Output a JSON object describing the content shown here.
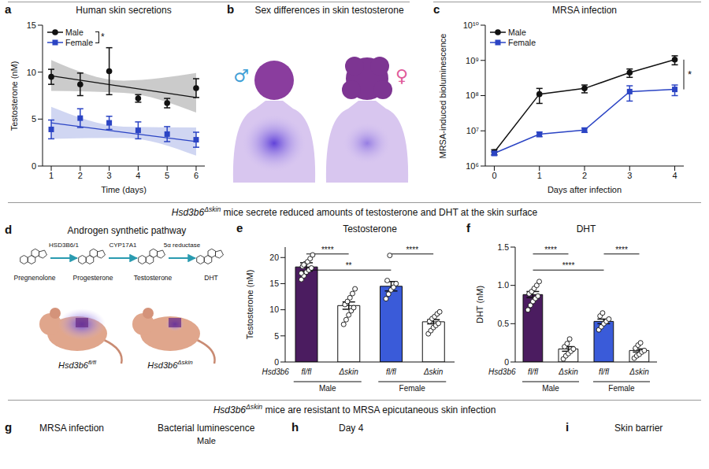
{
  "chart_data": [
    {
      "panel": "a",
      "type": "scatter",
      "title": "Human skin secretions",
      "x_label": "Time (days)",
      "y_label": "Testosterone (nM)",
      "xlim": [
        0.7,
        6.3
      ],
      "xticks": [
        1,
        2,
        3,
        4,
        5,
        6
      ],
      "ylim": [
        0,
        15
      ],
      "yticks": [
        0,
        5,
        10,
        15
      ],
      "legend": "upper left",
      "annotations": [
        "*"
      ],
      "series": [
        {
          "name": "Male",
          "color": "#111111",
          "marker": "circle",
          "x": [
            1,
            2,
            3,
            4,
            5,
            6
          ],
          "values": [
            9.5,
            8.7,
            10.1,
            7.2,
            6.7,
            8.3
          ],
          "errors": [
            0.8,
            1.2,
            2.5,
            0.4,
            0.5,
            1.0
          ],
          "fit_x": [
            1,
            3.5,
            6
          ],
          "fit": [
            9.6,
            8.45,
            7.3
          ],
          "fit_low": [
            8.0,
            7.8,
            5.7
          ],
          "fit_high": [
            11.3,
            9.1,
            9.9
          ]
        },
        {
          "name": "Female",
          "color": "#2b44c4",
          "marker": "square",
          "x": [
            1,
            2,
            3,
            4,
            5,
            6
          ],
          "values": [
            3.9,
            5.1,
            4.6,
            3.8,
            3.4,
            2.8
          ],
          "errors": [
            1.0,
            1.0,
            0.7,
            0.9,
            0.8,
            0.8
          ],
          "fit_x": [
            1,
            3.5,
            6
          ],
          "fit": [
            4.6,
            3.6,
            2.6
          ],
          "fit_low": [
            2.9,
            3.0,
            1.1
          ],
          "fit_high": [
            6.3,
            4.2,
            4.1
          ]
        }
      ]
    },
    {
      "panel": "c",
      "type": "line",
      "title": "MRSA infection",
      "x_label": "Days after infection",
      "y_label": "MRSA-induced bioluminescence",
      "log": "y",
      "xlim": [
        -0.2,
        4.2
      ],
      "xticks": [
        0,
        1,
        2,
        3,
        4
      ],
      "ylim": [
        1000000,
        10000000000
      ],
      "yticks": [
        {
          "value": 1000000,
          "label": "10⁶"
        },
        {
          "value": 10000000,
          "label": "10⁷"
        },
        {
          "value": 100000000,
          "label": "10⁸"
        },
        {
          "value": 1000000000,
          "label": "10⁹"
        },
        {
          "value": 10000000000,
          "label": "10¹⁰"
        }
      ],
      "legend": "upper left",
      "annotations": [
        "*"
      ],
      "series": [
        {
          "name": "Male",
          "color": "#111111",
          "marker": "circle",
          "x": [
            0,
            1,
            2,
            3,
            4
          ],
          "values": [
            2500000,
            110000000,
            160000000,
            450000000,
            1050000000
          ],
          "errors": [
            400000,
            50000000,
            40000000,
            120000000,
            300000000
          ]
        },
        {
          "name": "Female",
          "color": "#2b44c4",
          "marker": "square",
          "x": [
            0,
            1,
            2,
            3,
            4
          ],
          "values": [
            2300000,
            8000000,
            10500000,
            130000000,
            150000000
          ],
          "errors": [
            300000,
            1200000,
            1500000,
            60000000,
            50000000
          ]
        }
      ]
    },
    {
      "panel": "e",
      "type": "bar",
      "title": "Testosterone",
      "y_label": "Testosterone (nM)",
      "gene": "Hsd3b6",
      "categories": [
        "fl/fl",
        "Δskin",
        "fl/fl",
        "Δskin"
      ],
      "groups": [
        "Male",
        "Male",
        "Female",
        "Female"
      ],
      "values": [
        18.2,
        10.8,
        14.5,
        7.7
      ],
      "errors": [
        0.8,
        0.7,
        0.9,
        0.4
      ],
      "colors": [
        "#4b1c60",
        "#ffffff",
        "#3a5bd9",
        "#ffffff"
      ],
      "points": [
        [
          15.8,
          16.5,
          17.2,
          17.6,
          18.0,
          18.3,
          18.8,
          19.2,
          19.8,
          20.5,
          17.0,
          18.6
        ],
        [
          7.2,
          8.1,
          9.0,
          9.8,
          10.4,
          11.0,
          11.6,
          12.3,
          13.1,
          14.0
        ],
        [
          12.1,
          13.0,
          13.8,
          14.3,
          15.0,
          15.6,
          20.4
        ],
        [
          5.4,
          6.0,
          6.6,
          7.0,
          7.4,
          7.8,
          8.3,
          8.7,
          9.2,
          9.6
        ]
      ],
      "ylim": [
        0,
        22
      ],
      "yticks": [
        0,
        5,
        10,
        15,
        20
      ],
      "significance": [
        {
          "from": 0,
          "to": 1,
          "label": "****"
        },
        {
          "from": 0,
          "to": 2,
          "label": "**"
        },
        {
          "from": 2,
          "to": 3,
          "label": "****"
        }
      ]
    },
    {
      "panel": "f",
      "type": "bar",
      "title": "DHT",
      "y_label": "DHT (nM)",
      "gene": "Hsd3b6",
      "categories": [
        "fl/fl",
        "Δskin",
        "fl/fl",
        "Δskin"
      ],
      "groups": [
        "Male",
        "Male",
        "Female",
        "Female"
      ],
      "values": [
        0.88,
        0.17,
        0.53,
        0.15
      ],
      "errors": [
        0.04,
        0.03,
        0.03,
        0.02
      ],
      "colors": [
        "#4b1c60",
        "#ffffff",
        "#3a5bd9",
        "#ffffff"
      ],
      "points": [
        [
          0.68,
          0.74,
          0.79,
          0.83,
          0.86,
          0.89,
          0.92,
          0.96,
          1.0,
          1.05
        ],
        [
          0.04,
          0.08,
          0.11,
          0.14,
          0.17,
          0.2,
          0.24,
          0.3
        ],
        [
          0.42,
          0.46,
          0.5,
          0.53,
          0.56,
          0.6,
          0.64
        ],
        [
          0.05,
          0.08,
          0.1,
          0.13,
          0.15,
          0.18,
          0.22,
          0.25
        ]
      ],
      "ylim": [
        0,
        1.5
      ],
      "yticks": [
        0,
        0.5,
        {
          "value": 1,
          "label": "1.0"
        },
        1.5
      ],
      "significance": [
        {
          "from": 0,
          "to": 1,
          "label": "****"
        },
        {
          "from": 0,
          "to": 2,
          "label": "****"
        },
        {
          "from": 2,
          "to": 3,
          "label": "****"
        }
      ]
    }
  ],
  "diagrams": [
    {
      "panel": "b",
      "title": "Sex differences in skin testosterone",
      "symbols": [
        "♂",
        "♀"
      ]
    },
    {
      "panel": "d",
      "title": "Androgen synthetic pathway",
      "compounds": [
        "Pregnenolone",
        "Progesterone",
        "Testosterone",
        "DHT"
      ],
      "enzymes": [
        "HSD3B6/1",
        "CYP17A1",
        "5α reductase"
      ],
      "mice": [
        {
          "gene": "Hsd3b6",
          "genotype": "fl/fl"
        },
        {
          "gene": "Hsd3b6",
          "genotype": "Δskin"
        }
      ]
    }
  ],
  "section_headers": [
    {
      "gene": "Hsd3b6",
      "genotype": "Δskin",
      "text": "mice secrete reduced amounts of testosterone and DHT at the skin surface"
    },
    {
      "gene": "Hsd3b6",
      "genotype": "Δskin",
      "text": "mice are resistant to MRSA epicutaneous skin infection"
    }
  ],
  "partial_panels": [
    {
      "panel": "g",
      "title": "MRSA infection",
      "subtitle": "Bacterial luminescence",
      "group": "Male"
    },
    {
      "panel": "h",
      "title": "Day 4"
    },
    {
      "panel": "i",
      "title": "Skin barrier"
    }
  ]
}
